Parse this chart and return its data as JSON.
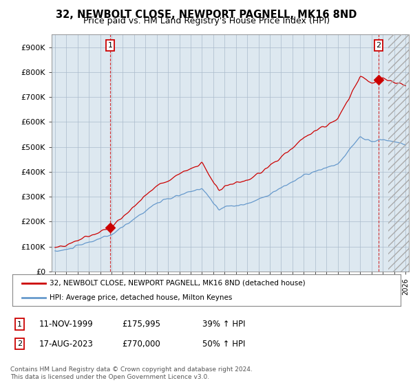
{
  "title": "32, NEWBOLT CLOSE, NEWPORT PAGNELL, MK16 8ND",
  "subtitle": "Price paid vs. HM Land Registry's House Price Index (HPI)",
  "ylim": [
    0,
    950000
  ],
  "yticks": [
    0,
    100000,
    200000,
    300000,
    400000,
    500000,
    600000,
    700000,
    800000,
    900000
  ],
  "ytick_labels": [
    "£0",
    "£100K",
    "£200K",
    "£300K",
    "£400K",
    "£500K",
    "£600K",
    "£700K",
    "£800K",
    "£900K"
  ],
  "xlim_left": 1994.7,
  "xlim_right": 2026.3,
  "hatch_start": 2024.5,
  "sale1_date_num": 1999.87,
  "sale1_price": 175995,
  "sale2_date_num": 2023.63,
  "sale2_price": 770000,
  "line_color_price": "#cc0000",
  "line_color_hpi": "#6699cc",
  "chart_bg": "#dde8f0",
  "legend_label_price": "32, NEWBOLT CLOSE, NEWPORT PAGNELL, MK16 8ND (detached house)",
  "legend_label_hpi": "HPI: Average price, detached house, Milton Keynes",
  "table_row1": [
    "1",
    "11-NOV-1999",
    "£175,995",
    "39% ↑ HPI"
  ],
  "table_row2": [
    "2",
    "17-AUG-2023",
    "£770,000",
    "50% ↑ HPI"
  ],
  "footnote": "Contains HM Land Registry data © Crown copyright and database right 2024.\nThis data is licensed under the Open Government Licence v3.0.",
  "bg_color": "#ffffff",
  "grid_color": "#aabbcc",
  "title_fontsize": 10.5,
  "subtitle_fontsize": 9
}
